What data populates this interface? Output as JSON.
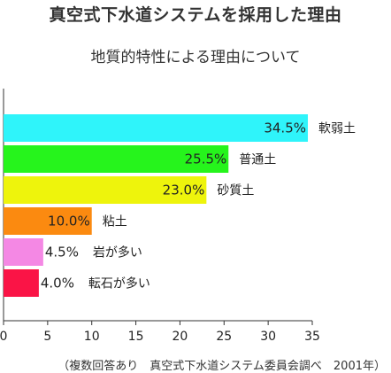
{
  "chart_data": {
    "type": "bar",
    "orientation": "horizontal",
    "title": "真空式下水道システムを採用した理由",
    "subtitle": "地質的特性による理由について",
    "source": "（複数回答あり　真空式下水道システム委員会調べ　2001年）",
    "categories": [
      "軟弱土",
      "普通土",
      "砂質土",
      "粘土",
      "岩が多い",
      "転石が多い"
    ],
    "values": [
      34.5,
      25.5,
      23.0,
      10.0,
      4.5,
      4.0
    ],
    "value_labels": [
      "34.5%",
      "25.5%",
      "23.0%",
      "10.0%",
      "4.5%",
      "4.0%"
    ],
    "colors": [
      "#2ff4fa",
      "#26f41c",
      "#eef40c",
      "#fb8a10",
      "#f488e4",
      "#fa1446"
    ],
    "xlim": [
      0,
      35
    ],
    "x_ticks": [
      "0",
      "5",
      "10",
      "15",
      "20",
      "25",
      "30",
      "35"
    ],
    "xlabel": "",
    "ylabel": "",
    "grid": false,
    "legend": "none"
  }
}
